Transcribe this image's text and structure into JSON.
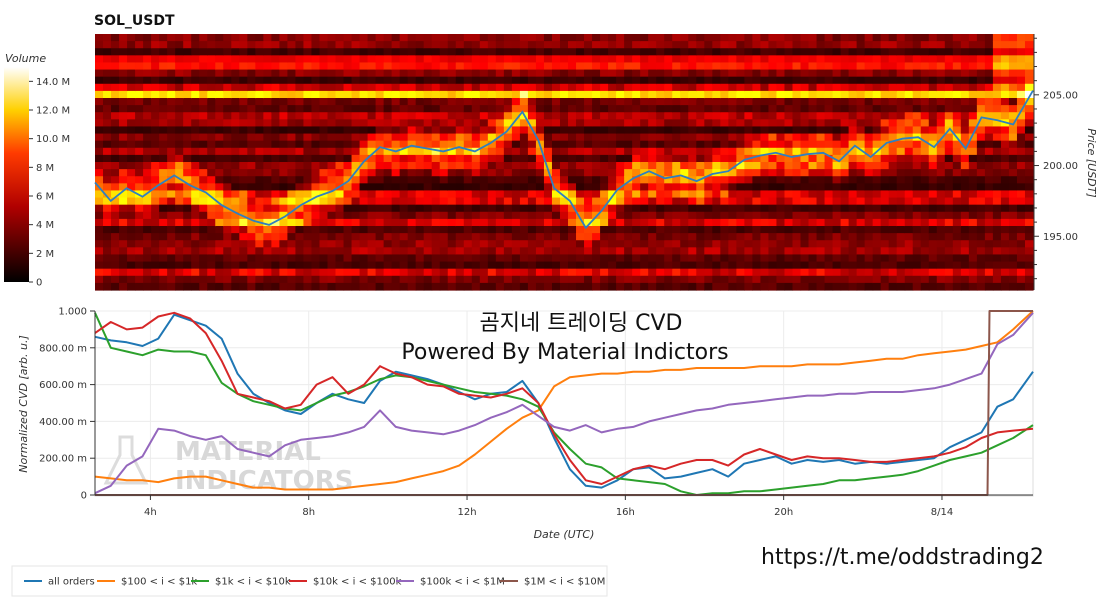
{
  "chart_data": [
    {
      "type": "heatmap",
      "title": "SOL_USDT",
      "colorbar": {
        "label": "Volume",
        "ticks": [
          "0",
          "2 M",
          "4 M",
          "6 M",
          "8 M",
          "10.0 M",
          "12.0 M",
          "14.0 M"
        ],
        "range": [
          0,
          15000000
        ],
        "colormap": "hot"
      },
      "yaxis": {
        "label": "Price [USDT]",
        "side": "right",
        "ticks": [
          "195.00",
          "200.00",
          "205.00"
        ],
        "tick_values": [
          195,
          200,
          205
        ],
        "range": [
          191.2,
          209.3
        ]
      },
      "xaxis": {
        "range_hours": [
          2.6,
          26.3
        ]
      },
      "price_series": {
        "name": "price",
        "color": "#2f7fc1",
        "x_hours": [
          2.6,
          3.0,
          3.4,
          3.8,
          4.2,
          4.6,
          5.0,
          5.4,
          5.8,
          6.2,
          6.6,
          7.0,
          7.4,
          7.8,
          8.2,
          8.6,
          9.0,
          9.4,
          9.8,
          10.2,
          10.6,
          11.0,
          11.4,
          11.8,
          12.2,
          12.6,
          13.0,
          13.4,
          13.8,
          14.2,
          14.6,
          15.0,
          15.4,
          15.8,
          16.2,
          16.6,
          17.0,
          17.4,
          17.8,
          18.2,
          18.6,
          19.0,
          19.4,
          19.8,
          20.2,
          20.6,
          21.0,
          21.4,
          21.8,
          22.2,
          22.6,
          23.0,
          23.4,
          23.8,
          24.2,
          24.6,
          25.0,
          25.4,
          25.8,
          26.3
        ],
        "values": [
          198.8,
          197.5,
          198.4,
          197.8,
          198.6,
          199.3,
          198.6,
          198.1,
          197.2,
          196.6,
          196.1,
          195.8,
          196.4,
          197.2,
          197.8,
          198.2,
          198.9,
          200.3,
          201.3,
          201.0,
          201.4,
          201.2,
          201.0,
          201.3,
          201.0,
          201.6,
          202.4,
          203.8,
          201.8,
          198.4,
          197.5,
          195.6,
          196.8,
          198.3,
          199.1,
          199.6,
          199.1,
          199.3,
          198.9,
          199.4,
          199.6,
          200.4,
          200.7,
          200.9,
          200.6,
          200.8,
          200.9,
          200.3,
          201.4,
          200.6,
          201.6,
          201.9,
          202.0,
          201.3,
          202.6,
          201.2,
          203.4,
          203.2,
          202.9,
          205.3
        ]
      }
    },
    {
      "type": "line",
      "overlay_text": [
        "곰지네 트레이딩 CVD",
        "Powered By Material Indictors"
      ],
      "xlabel": "Date (UTC)",
      "ylabel": "Normalized CVD [arb. u.]",
      "xticks": [
        "4h",
        "8h",
        "12h",
        "16h",
        "20h",
        "8/14"
      ],
      "xtick_hours": [
        4,
        8,
        12,
        16,
        20,
        24
      ],
      "xlim_hours": [
        2.6,
        26.3
      ],
      "yticks": [
        "0",
        "200.00 m",
        "400.00 m",
        "600.00 m",
        "800.00 m",
        "1.000"
      ],
      "ytick_values": [
        0,
        0.2,
        0.4,
        0.6,
        0.8,
        1.0
      ],
      "ylim": [
        0,
        1.0
      ],
      "grid": true,
      "legend_position": "bottom-left",
      "x_hours": [
        2.6,
        3.0,
        3.4,
        3.8,
        4.2,
        4.6,
        5.0,
        5.4,
        5.8,
        6.2,
        6.6,
        7.0,
        7.4,
        7.8,
        8.2,
        8.6,
        9.0,
        9.4,
        9.8,
        10.2,
        10.6,
        11.0,
        11.4,
        11.8,
        12.2,
        12.6,
        13.0,
        13.4,
        13.8,
        14.2,
        14.6,
        15.0,
        15.4,
        15.8,
        16.2,
        16.6,
        17.0,
        17.4,
        17.8,
        18.2,
        18.6,
        19.0,
        19.4,
        19.8,
        20.2,
        20.6,
        21.0,
        21.4,
        21.8,
        22.2,
        22.6,
        23.0,
        23.4,
        23.8,
        24.2,
        24.6,
        25.0,
        25.4,
        25.8,
        26.3
      ],
      "series": [
        {
          "name": "all orders",
          "color": "#1f77b4",
          "values": [
            0.86,
            0.84,
            0.83,
            0.81,
            0.85,
            0.98,
            0.95,
            0.92,
            0.85,
            0.66,
            0.55,
            0.5,
            0.46,
            0.44,
            0.5,
            0.55,
            0.52,
            0.5,
            0.62,
            0.67,
            0.65,
            0.63,
            0.6,
            0.56,
            0.52,
            0.55,
            0.56,
            0.62,
            0.5,
            0.31,
            0.14,
            0.05,
            0.04,
            0.08,
            0.14,
            0.15,
            0.09,
            0.1,
            0.12,
            0.14,
            0.1,
            0.17,
            0.19,
            0.21,
            0.17,
            0.19,
            0.18,
            0.19,
            0.17,
            0.18,
            0.17,
            0.18,
            0.19,
            0.2,
            0.26,
            0.3,
            0.34,
            0.48,
            0.52,
            0.67
          ]
        },
        {
          "name": "$100 < i < $1k",
          "color": "#ff7f0e",
          "values": [
            0.1,
            0.09,
            0.08,
            0.08,
            0.07,
            0.09,
            0.1,
            0.1,
            0.08,
            0.06,
            0.04,
            0.04,
            0.03,
            0.03,
            0.03,
            0.03,
            0.04,
            0.05,
            0.06,
            0.07,
            0.09,
            0.11,
            0.13,
            0.16,
            0.22,
            0.29,
            0.36,
            0.42,
            0.46,
            0.59,
            0.64,
            0.65,
            0.66,
            0.66,
            0.67,
            0.67,
            0.68,
            0.68,
            0.69,
            0.69,
            0.69,
            0.69,
            0.7,
            0.7,
            0.7,
            0.71,
            0.71,
            0.71,
            0.72,
            0.73,
            0.74,
            0.74,
            0.76,
            0.77,
            0.78,
            0.79,
            0.81,
            0.83,
            0.9,
            1.0
          ]
        },
        {
          "name": "$1k < i < $10k",
          "color": "#2ca02c",
          "values": [
            0.99,
            0.8,
            0.78,
            0.76,
            0.79,
            0.78,
            0.78,
            0.76,
            0.61,
            0.55,
            0.51,
            0.49,
            0.47,
            0.46,
            0.5,
            0.54,
            0.56,
            0.59,
            0.63,
            0.65,
            0.64,
            0.62,
            0.6,
            0.58,
            0.56,
            0.55,
            0.54,
            0.52,
            0.48,
            0.34,
            0.25,
            0.17,
            0.15,
            0.09,
            0.08,
            0.07,
            0.06,
            0.02,
            0.0,
            0.01,
            0.01,
            0.02,
            0.02,
            0.03,
            0.04,
            0.05,
            0.06,
            0.08,
            0.08,
            0.09,
            0.1,
            0.11,
            0.13,
            0.16,
            0.19,
            0.21,
            0.23,
            0.27,
            0.31,
            0.38
          ]
        },
        {
          "name": "$10k < i < $100k",
          "color": "#d62728",
          "values": [
            0.88,
            0.94,
            0.9,
            0.91,
            0.97,
            0.99,
            0.96,
            0.88,
            0.73,
            0.55,
            0.53,
            0.51,
            0.47,
            0.49,
            0.6,
            0.64,
            0.55,
            0.6,
            0.7,
            0.66,
            0.64,
            0.6,
            0.59,
            0.55,
            0.54,
            0.53,
            0.55,
            0.58,
            0.5,
            0.33,
            0.19,
            0.08,
            0.06,
            0.1,
            0.14,
            0.16,
            0.14,
            0.17,
            0.19,
            0.19,
            0.16,
            0.22,
            0.25,
            0.22,
            0.19,
            0.21,
            0.2,
            0.2,
            0.19,
            0.18,
            0.18,
            0.19,
            0.2,
            0.21,
            0.23,
            0.26,
            0.31,
            0.34,
            0.35,
            0.36
          ]
        },
        {
          "name": "$100k < i < $1M",
          "color": "#9467bd",
          "values": [
            0.01,
            0.05,
            0.16,
            0.21,
            0.36,
            0.35,
            0.32,
            0.3,
            0.32,
            0.25,
            0.23,
            0.21,
            0.27,
            0.3,
            0.31,
            0.32,
            0.34,
            0.37,
            0.46,
            0.37,
            0.35,
            0.34,
            0.33,
            0.35,
            0.38,
            0.42,
            0.45,
            0.49,
            0.43,
            0.37,
            0.35,
            0.38,
            0.34,
            0.36,
            0.37,
            0.4,
            0.42,
            0.44,
            0.46,
            0.47,
            0.49,
            0.5,
            0.51,
            0.52,
            0.53,
            0.54,
            0.54,
            0.55,
            0.55,
            0.56,
            0.56,
            0.56,
            0.57,
            0.58,
            0.6,
            0.63,
            0.66,
            0.82,
            0.87,
            0.99
          ]
        },
        {
          "name": "$1M < i < $10M",
          "color": "#8c564b",
          "points": [
            [
              2.6,
              0.0
            ],
            [
              25.15,
              0.0
            ],
            [
              25.2,
              1.0
            ],
            [
              26.3,
              1.0
            ]
          ]
        }
      ]
    }
  ],
  "watermark": [
    "MATERIAL",
    "INDICATORS"
  ],
  "link_text": "https://t.me/oddstrading2"
}
